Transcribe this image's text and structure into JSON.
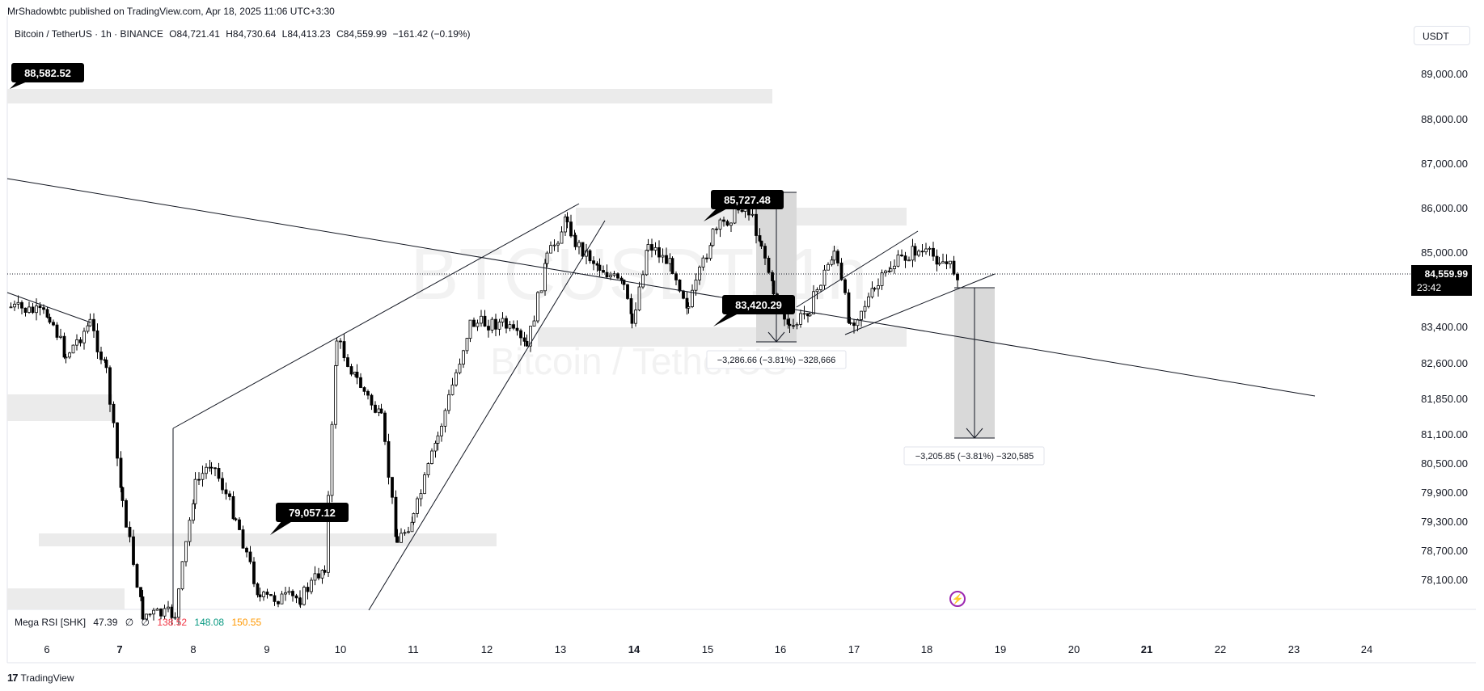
{
  "header": {
    "publisher": "MrShadowbtc published on TradingView.com, Apr 18, 2025 11:06 UTC+3:30",
    "symbol": "Bitcoin / TetherUS · 1h · BINANCE",
    "open": "O84,721.41",
    "high": "H84,730.64",
    "low": "L84,413.23",
    "close": "C84,559.99",
    "change": "−161.42 (−0.19%)",
    "currency": "USDT"
  },
  "indicator": {
    "name": "Mega RSI [SHK]",
    "v1": "47.39",
    "v2": "∅",
    "v3": "∅",
    "v4": "138.52",
    "v5": "148.08",
    "v6": "150.55",
    "colors": {
      "v4": "#f23645",
      "v5": "#089981",
      "v6": "#ff9800"
    }
  },
  "footer": {
    "brand": "TradingView"
  },
  "chart_data": {
    "type": "candlestick",
    "title": "Bitcoin / TetherUS · 1h · BINANCE",
    "ylabel": "USDT",
    "y_ticks": [
      "89,000.00",
      "88,000.00",
      "87,000.00",
      "86,000.00",
      "85,000.00",
      "83,400.00",
      "82,600.00",
      "81,850.00",
      "81,100.00",
      "80,500.00",
      "79,900.00",
      "79,300.00",
      "78,700.00",
      "78,100.00"
    ],
    "x_ticks": [
      "6",
      "7",
      "8",
      "9",
      "10",
      "11",
      "12",
      "13",
      "14",
      "15",
      "16",
      "17",
      "18",
      "19",
      "20",
      "21",
      "22",
      "23",
      "24"
    ],
    "bold_x_ticks": [
      "7",
      "14",
      "21"
    ],
    "last_price": "84,559.99",
    "countdown": "23:42",
    "price_labels": [
      "88,582.52",
      "85,727.48",
      "83,420.29",
      "79,057.12"
    ],
    "measure_labels": [
      "−3,286.66 (−3.81%) −328,666",
      "−3,205.85 (−3.81%) −320,585"
    ],
    "watermark": [
      "BTCUSDT, 1h",
      "Bitcoin / TetherUS"
    ],
    "colors": {
      "up": "#ffffff",
      "down": "#000000",
      "zones": "#ebebeb",
      "line": "#131722"
    }
  }
}
